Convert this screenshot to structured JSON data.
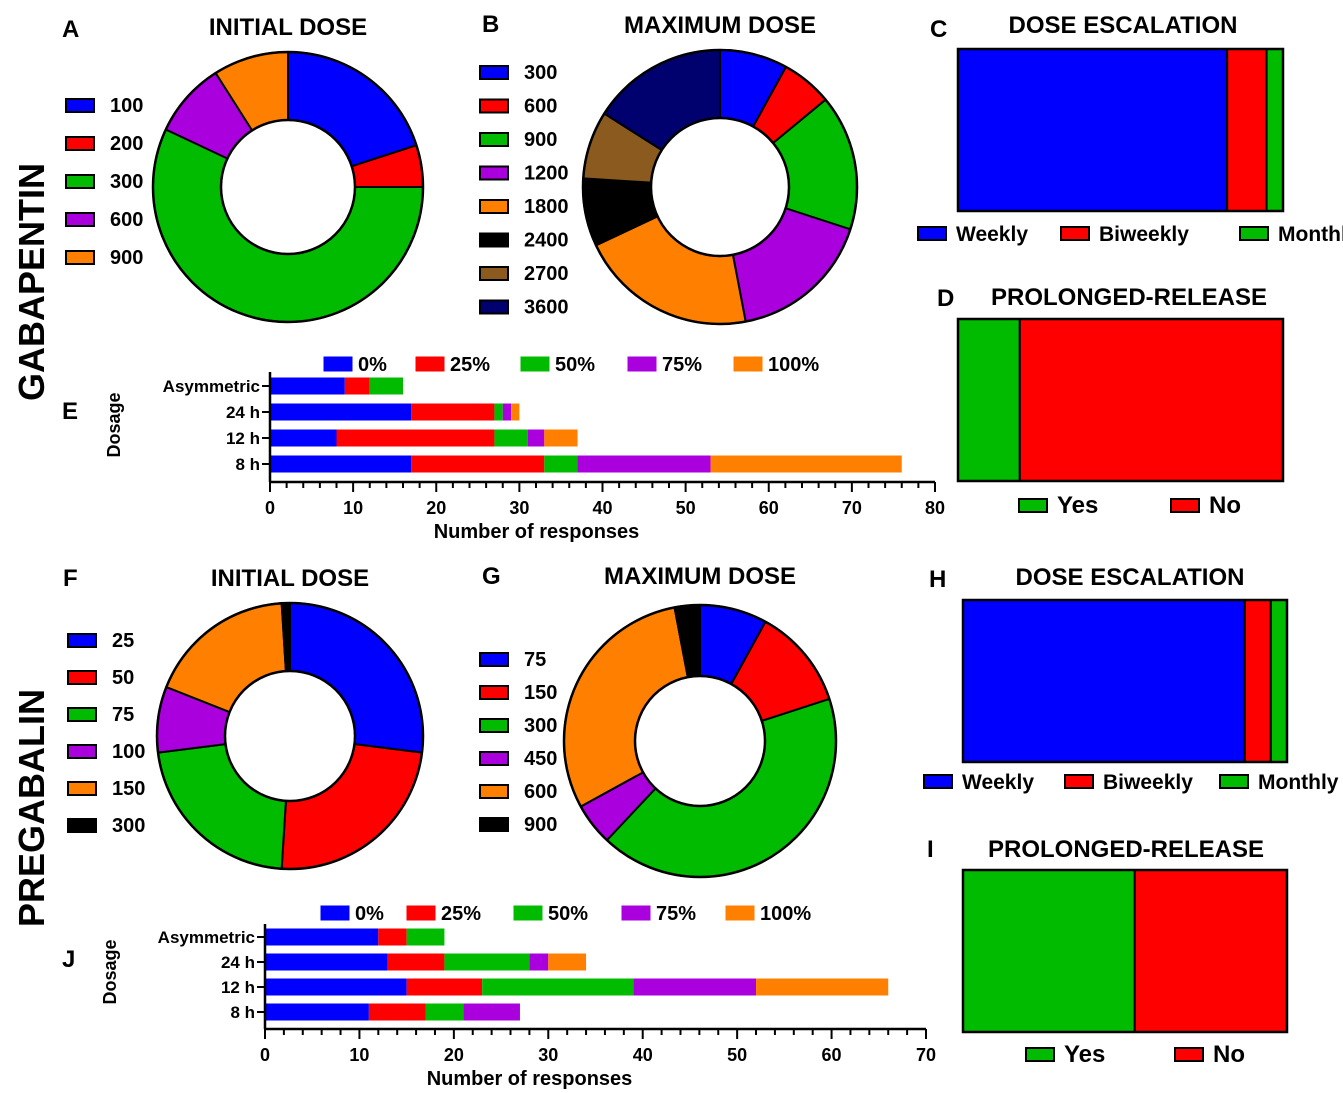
{
  "colors": {
    "blue": "#0000FF",
    "red": "#FF0000",
    "green": "#00BB00",
    "purple": "#AA00DD",
    "orange": "#FF8000",
    "black": "#000000",
    "brown": "#8B5A1E",
    "navy": "#00006E"
  },
  "row_labels": [
    "GABAPENTIN",
    "PREGABALIN"
  ],
  "chart_data": [
    {
      "id": "A",
      "type": "pie",
      "title": "INITIAL DOSE",
      "labels": [
        "100",
        "200",
        "300",
        "600",
        "900"
      ],
      "colors": [
        "#0000FF",
        "#FF0000",
        "#00BB00",
        "#AA00DD",
        "#FF8000"
      ],
      "values": [
        20,
        5,
        57,
        9,
        9
      ]
    },
    {
      "id": "B",
      "type": "pie",
      "title": "MAXIMUM DOSE",
      "labels": [
        "300",
        "600",
        "900",
        "1200",
        "1800",
        "2400",
        "2700",
        "3600"
      ],
      "colors": [
        "#0000FF",
        "#FF0000",
        "#00BB00",
        "#AA00DD",
        "#FF8000",
        "#000000",
        "#8B5A1E",
        "#00006E"
      ],
      "values": [
        8,
        6,
        16,
        17,
        21,
        8,
        8,
        16
      ]
    },
    {
      "id": "C",
      "type": "bar",
      "title": "DOSE ESCALATION",
      "stacked": "100%",
      "labels": [
        "Weekly",
        "Biweekly",
        "Monthly"
      ],
      "colors": [
        "#0000FF",
        "#FF0000",
        "#00BB00"
      ],
      "values": [
        82,
        12,
        5
      ]
    },
    {
      "id": "D",
      "type": "bar",
      "title": "PROLONGED-RELEASE",
      "stacked": "100%",
      "labels": [
        "Yes",
        "No"
      ],
      "colors": [
        "#00BB00",
        "#FF0000"
      ],
      "values": [
        19,
        81
      ]
    },
    {
      "id": "E",
      "type": "bar",
      "orientation": "horizontal",
      "stacked": true,
      "categories": [
        "Asymmetric",
        "24 h",
        "12 h",
        "8 h"
      ],
      "xlabel": "Number of responses",
      "ylabel": "Dosage",
      "xlim": [
        0,
        80
      ],
      "xticks": [
        0,
        10,
        20,
        30,
        40,
        50,
        60,
        70,
        80
      ],
      "series": [
        {
          "name": "0%",
          "color": "#0000FF",
          "values": [
            9,
            17,
            8,
            17
          ]
        },
        {
          "name": "25%",
          "color": "#FF0000",
          "values": [
            3,
            10,
            19,
            16
          ]
        },
        {
          "name": "50%",
          "color": "#00BB00",
          "values": [
            4,
            1,
            4,
            4
          ]
        },
        {
          "name": "75%",
          "color": "#AA00DD",
          "values": [
            0,
            1,
            2,
            16
          ]
        },
        {
          "name": "100%",
          "color": "#FF8000",
          "values": [
            0,
            1,
            4,
            23
          ]
        }
      ]
    },
    {
      "id": "F",
      "type": "pie",
      "title": "INITIAL DOSE",
      "labels": [
        "25",
        "50",
        "75",
        "100",
        "150",
        "300"
      ],
      "colors": [
        "#0000FF",
        "#FF0000",
        "#00BB00",
        "#AA00DD",
        "#FF8000",
        "#000000"
      ],
      "values": [
        27,
        24,
        22,
        8,
        18,
        1
      ]
    },
    {
      "id": "G",
      "type": "pie",
      "title": "MAXIMUM DOSE",
      "labels": [
        "75",
        "150",
        "300",
        "450",
        "600",
        "900"
      ],
      "colors": [
        "#0000FF",
        "#FF0000",
        "#00BB00",
        "#AA00DD",
        "#FF8000",
        "#000000"
      ],
      "values": [
        8,
        12,
        42,
        5,
        30,
        3
      ]
    },
    {
      "id": "H",
      "type": "bar",
      "title": "DOSE ESCALATION",
      "stacked": "100%",
      "labels": [
        "Weekly",
        "Biweekly",
        "Monthly"
      ],
      "colors": [
        "#0000FF",
        "#FF0000",
        "#00BB00"
      ],
      "values": [
        87,
        8,
        5
      ]
    },
    {
      "id": "I",
      "type": "bar",
      "title": "PROLONGED-RELEASE",
      "stacked": "100%",
      "labels": [
        "Yes",
        "No"
      ],
      "colors": [
        "#00BB00",
        "#FF0000"
      ],
      "values": [
        53,
        47
      ]
    },
    {
      "id": "J",
      "type": "bar",
      "orientation": "horizontal",
      "stacked": true,
      "categories": [
        "Asymmetric",
        "24 h",
        "12 h",
        "8 h"
      ],
      "xlabel": "Number of responses",
      "ylabel": "Dosage",
      "xlim": [
        0,
        70
      ],
      "xticks": [
        0,
        10,
        20,
        30,
        40,
        50,
        60,
        70
      ],
      "series": [
        {
          "name": "0%",
          "color": "#0000FF",
          "values": [
            12,
            13,
            15,
            11
          ]
        },
        {
          "name": "25%",
          "color": "#FF0000",
          "values": [
            3,
            6,
            8,
            6
          ]
        },
        {
          "name": "50%",
          "color": "#00BB00",
          "values": [
            4,
            9,
            16,
            4
          ]
        },
        {
          "name": "75%",
          "color": "#AA00DD",
          "values": [
            0,
            2,
            13,
            6
          ]
        },
        {
          "name": "100%",
          "color": "#FF8000",
          "values": [
            0,
            4,
            14,
            0
          ]
        }
      ]
    }
  ]
}
